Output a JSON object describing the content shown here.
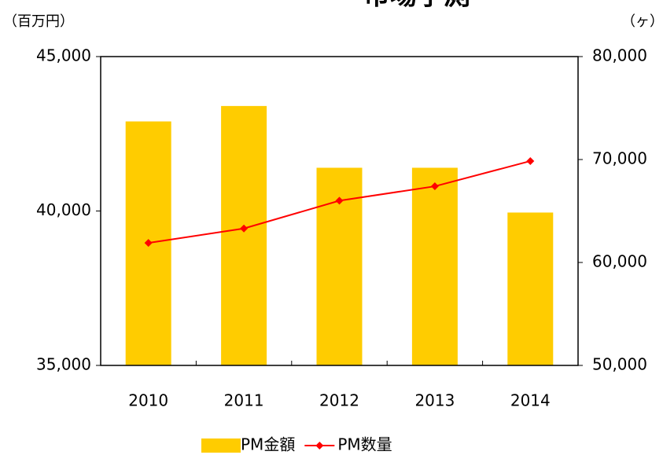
{
  "chart_data": {
    "type": "bar_line",
    "title": "市場予測",
    "y_unit": "（百万円）",
    "y2_unit": "（ヶ）",
    "categories": [
      "2010",
      "2011",
      "2012",
      "2013",
      "2014"
    ],
    "series": [
      {
        "name": "PM金額",
        "type": "bar",
        "color": "#ffcc00",
        "values": [
          42900,
          43400,
          41400,
          41400,
          39950
        ]
      },
      {
        "name": "PM数量",
        "type": "line",
        "axis": "y2",
        "color": "#ff0000",
        "values": [
          61900,
          63300,
          66000,
          67400,
          69850
        ]
      }
    ],
    "ylim": [
      35000,
      45000
    ],
    "yticks": [
      {
        "value": 35000,
        "label": "35,000"
      },
      {
        "value": 40000,
        "label": "40,000"
      },
      {
        "value": 45000,
        "label": "45,000"
      }
    ],
    "y2lim": [
      50000,
      80000
    ],
    "y2ticks": [
      {
        "value": 50000,
        "label": "50,000"
      },
      {
        "value": 60000,
        "label": "60,000"
      },
      {
        "value": 70000,
        "label": "70,000"
      },
      {
        "value": 80000,
        "label": "80,000"
      }
    ],
    "legend": "bottom"
  }
}
